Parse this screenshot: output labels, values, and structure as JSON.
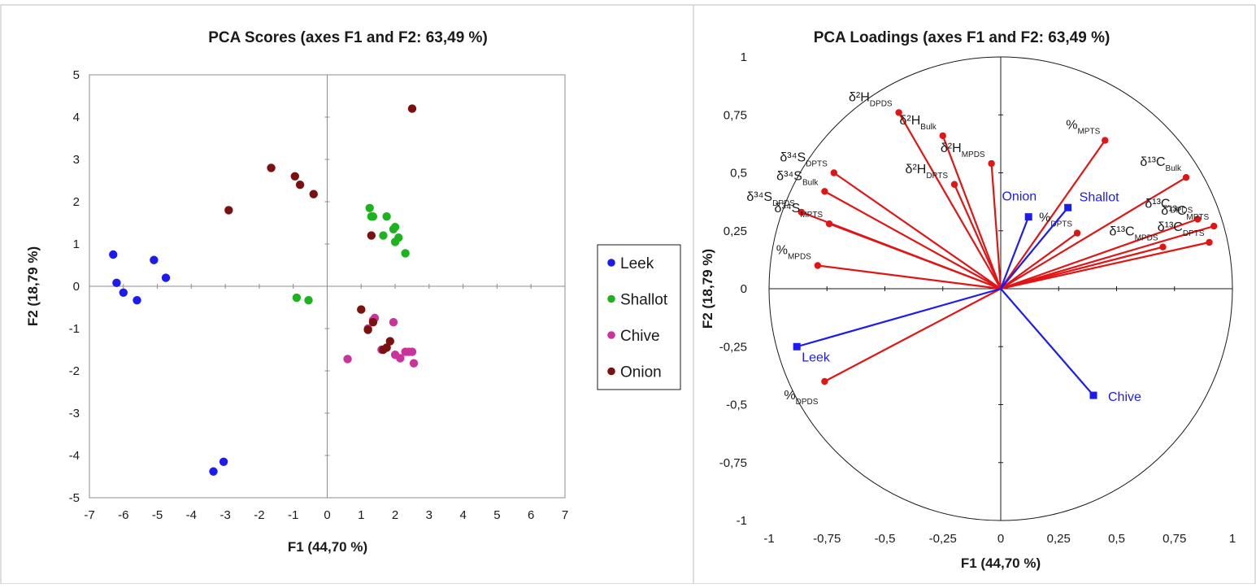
{
  "charts": [
    {
      "type": "scatter",
      "title": "PCA Scores (axes F1 and F2: 63,49 %)",
      "xlabel": "F1 (44,70 %)",
      "ylabel": "F2 (18,79 %)",
      "xlim": [
        -7,
        7
      ],
      "ylim": [
        -5,
        5
      ],
      "x_ticks": [
        "-7",
        "-6",
        "-5",
        "-4",
        "-3",
        "-2",
        "-1",
        "0",
        "1",
        "2",
        "3",
        "4",
        "5",
        "6",
        "7"
      ],
      "y_ticks": [
        "5",
        "4",
        "3",
        "2",
        "1",
        "0",
        "-1",
        "-2",
        "-3",
        "-4",
        "-5"
      ],
      "grid": false,
      "legend_position": "right",
      "series": [
        {
          "name": "Leek",
          "color": "#1c1cf0",
          "points": [
            [
              -6.3,
              0.75
            ],
            [
              -6.2,
              0.08
            ],
            [
              -6.0,
              -0.15
            ],
            [
              -5.6,
              -0.33
            ],
            [
              -5.1,
              0.62
            ],
            [
              -4.75,
              0.2
            ],
            [
              -3.35,
              -4.38
            ],
            [
              -3.05,
              -4.15
            ]
          ]
        },
        {
          "name": "Shallot",
          "color": "#1db31d",
          "points": [
            [
              1.25,
              1.85
            ],
            [
              1.3,
              1.65
            ],
            [
              1.35,
              1.65
            ],
            [
              1.75,
              1.65
            ],
            [
              1.95,
              1.35
            ],
            [
              2.0,
              1.4
            ],
            [
              1.65,
              1.2
            ],
            [
              2.0,
              1.05
            ],
            [
              2.1,
              1.15
            ],
            [
              2.3,
              0.78
            ],
            [
              -0.9,
              -0.27
            ],
            [
              -0.55,
              -0.33
            ]
          ]
        },
        {
          "name": "Chive",
          "color": "#c8349a",
          "points": [
            [
              0.6,
              -1.72
            ],
            [
              1.35,
              -0.8
            ],
            [
              1.95,
              -0.85
            ],
            [
              1.6,
              -1.5
            ],
            [
              2.0,
              -1.62
            ],
            [
              2.15,
              -1.7
            ],
            [
              2.3,
              -1.55
            ],
            [
              2.4,
              -1.55
            ],
            [
              2.5,
              -1.55
            ],
            [
              2.55,
              -1.82
            ],
            [
              1.2,
              -1.0
            ],
            [
              1.4,
              -0.75
            ]
          ]
        },
        {
          "name": "Onion",
          "color": "#7a1010",
          "points": [
            [
              2.5,
              4.2
            ],
            [
              -1.65,
              2.8
            ],
            [
              -0.95,
              2.6
            ],
            [
              -0.8,
              2.4
            ],
            [
              -0.4,
              2.18
            ],
            [
              -2.9,
              1.8
            ],
            [
              1.3,
              1.2
            ],
            [
              1.0,
              -0.55
            ],
            [
              1.2,
              -1.03
            ],
            [
              1.35,
              -0.85
            ],
            [
              1.85,
              -1.3
            ],
            [
              1.75,
              -1.45
            ],
            [
              1.65,
              -1.5
            ]
          ]
        }
      ]
    },
    {
      "type": "scatter",
      "title": "PCA Loadings (axes F1 and F2: 63,49 %)",
      "xlabel": "F1 (44,70 %)",
      "ylabel": "F2 (18,79 %)",
      "xlim": [
        -1,
        1
      ],
      "ylim": [
        -1,
        1
      ],
      "x_ticks": [
        "-1",
        "-0,75",
        "-0,5",
        "-0,25",
        "0",
        "0,25",
        "0,5",
        "0,75",
        "1"
      ],
      "y_ticks": [
        "1",
        "0,75",
        "0,5",
        "0,25",
        "0",
        "-0,25",
        "-0,5",
        "-0,75",
        "-1"
      ],
      "grid": false,
      "unit_circle": true,
      "variables_color": "#e01515",
      "supplementary_color": "#1c1cf0",
      "variables": [
        {
          "base": "δ²H",
          "sub": "DPDS",
          "x": -0.44,
          "y": 0.76
        },
        {
          "base": "δ²H",
          "sub": "Bulk",
          "x": -0.25,
          "y": 0.66
        },
        {
          "base": "δ²H",
          "sub": "MPDS",
          "x": -0.04,
          "y": 0.54
        },
        {
          "base": "δ²H",
          "sub": "DPTS",
          "x": -0.2,
          "y": 0.45
        },
        {
          "base": "%",
          "sub": "MPTS",
          "x": 0.45,
          "y": 0.64
        },
        {
          "base": "δ¹³C",
          "sub": "Bulk",
          "x": 0.8,
          "y": 0.48
        },
        {
          "base": "δ³⁴S",
          "sub": "DPTS",
          "x": -0.72,
          "y": 0.5
        },
        {
          "base": "δ³⁴S",
          "sub": "Bulk",
          "x": -0.76,
          "y": 0.42
        },
        {
          "base": "δ³⁴S",
          "sub": "DPDS",
          "x": -0.86,
          "y": 0.33
        },
        {
          "base": "δ³⁴S",
          "sub": "MPTS",
          "x": -0.74,
          "y": 0.28
        },
        {
          "base": "%",
          "sub": "MPDS",
          "x": -0.79,
          "y": 0.1
        },
        {
          "base": "%",
          "sub": "DPTS",
          "x": 0.33,
          "y": 0.24
        },
        {
          "base": "δ¹³C",
          "sub": "DPDS",
          "x": 0.85,
          "y": 0.3
        },
        {
          "base": "δ¹³C",
          "sub": "MPTS",
          "x": 0.92,
          "y": 0.27
        },
        {
          "base": "δ¹³C",
          "sub": "MPDS",
          "x": 0.7,
          "y": 0.18
        },
        {
          "base": "δ¹³C",
          "sub": "DPTS",
          "x": 0.9,
          "y": 0.2
        },
        {
          "base": "%",
          "sub": "DPDS",
          "x": -0.76,
          "y": -0.4
        }
      ],
      "supplementary": [
        {
          "name": "Onion",
          "x": 0.12,
          "y": 0.31
        },
        {
          "name": "Shallot",
          "x": 0.29,
          "y": 0.35
        },
        {
          "name": "Leek",
          "x": -0.88,
          "y": -0.25
        },
        {
          "name": "Chive",
          "x": 0.4,
          "y": -0.46
        }
      ]
    }
  ]
}
